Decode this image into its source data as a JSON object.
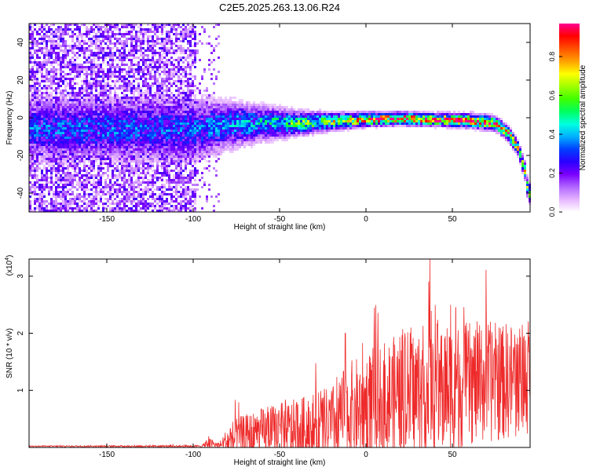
{
  "title": "C2E5.2025.263.13.06.R24",
  "colors": {
    "signal": "#ee2a2a",
    "axis": "#000000"
  },
  "chart_data": [
    {
      "type": "heatmap",
      "title": "C2E5.2025.263.13.06.R24",
      "xlabel": "Height of straight line (km)",
      "ylabel": "Frequency (Hz)",
      "xlim": [
        -195,
        95
      ],
      "ylim": [
        -50,
        50
      ],
      "x_ticks": [
        -150,
        -100,
        -50,
        0,
        50
      ],
      "x_tick_labels": [
        "-150",
        "-100",
        "-50",
        "0",
        "50"
      ],
      "y_ticks": [
        -40,
        -20,
        0,
        20,
        40
      ],
      "y_tick_labels": [
        "-40",
        "-20",
        "0",
        "20",
        "40"
      ],
      "colorbar": {
        "label": "Normalized spectral amplitude",
        "range": [
          0,
          0.97
        ],
        "ticks": [
          0,
          0.2,
          0.4,
          0.6,
          0.8
        ],
        "tick_labels": [
          "0.0",
          "0.2",
          "0.4",
          "0.6",
          "0.8"
        ],
        "colors": [
          "#ffffff",
          "#e6b3ff",
          "#b066ff",
          "#7a00ff",
          "#2a00ff",
          "#0040ff",
          "#00b0ff",
          "#00ffe0",
          "#00ff60",
          "#40ff00",
          "#a0ff00",
          "#ffff00",
          "#ffa000",
          "#ff5000",
          "#ff0000",
          "#ff0090"
        ]
      },
      "noise_region": {
        "x_range": [
          -195,
          -98
        ],
        "y_range": [
          -50,
          50
        ],
        "amplitude": 0.15
      },
      "signal_track": [
        {
          "x": -98,
          "f": -6,
          "spread": 9,
          "amp": 0.3
        },
        {
          "x": -80,
          "f": -4,
          "spread": 7,
          "amp": 0.35
        },
        {
          "x": -60,
          "f": -3,
          "spread": 5,
          "amp": 0.4
        },
        {
          "x": -40,
          "f": -3,
          "spread": 3.5,
          "amp": 0.5
        },
        {
          "x": -20,
          "f": -2,
          "spread": 2.5,
          "amp": 0.6
        },
        {
          "x": 0,
          "f": -1,
          "spread": 2,
          "amp": 0.75
        },
        {
          "x": 20,
          "f": -0.5,
          "spread": 1.8,
          "amp": 0.85
        },
        {
          "x": 40,
          "f": -1,
          "spread": 1.8,
          "amp": 0.85
        },
        {
          "x": 60,
          "f": -1.5,
          "spread": 2,
          "amp": 0.8
        },
        {
          "x": 75,
          "f": -3,
          "spread": 2,
          "amp": 0.8
        },
        {
          "x": 82,
          "f": -8,
          "spread": 2,
          "amp": 0.75
        },
        {
          "x": 88,
          "f": -16,
          "spread": 2,
          "amp": 0.7
        },
        {
          "x": 92,
          "f": -28,
          "spread": 2.5,
          "amp": 0.6
        },
        {
          "x": 94,
          "f": -40,
          "spread": 3,
          "amp": 0.5
        }
      ]
    },
    {
      "type": "line",
      "xlabel": "Height of straight line (km)",
      "ylabel": "SNR (10 * v/v)",
      "y_scale_label": "(x10",
      "y_scale_exp": "4",
      "y_scale_close": ")",
      "xlim": [
        -195,
        95
      ],
      "ylim": [
        0,
        3.3
      ],
      "x_ticks": [
        -150,
        -100,
        -50,
        0,
        50
      ],
      "x_tick_labels": [
        "-150",
        "-100",
        "-50",
        "0",
        "50"
      ],
      "y_ticks": [
        1,
        2,
        3
      ],
      "y_tick_labels": [
        "1",
        "2",
        "3"
      ],
      "envelope": [
        {
          "x": -195,
          "base": 0.02,
          "amp": 0.01
        },
        {
          "x": -95,
          "base": 0.02,
          "amp": 0.02
        },
        {
          "x": -91,
          "base": 0.06,
          "amp": 0.1
        },
        {
          "x": -85,
          "base": 0.03,
          "amp": 0.05
        },
        {
          "x": -78,
          "base": 0.1,
          "amp": 0.35
        },
        {
          "x": -60,
          "base": 0.2,
          "amp": 0.45
        },
        {
          "x": -40,
          "base": 0.25,
          "amp": 0.55
        },
        {
          "x": -20,
          "base": 0.3,
          "amp": 0.7
        },
        {
          "x": -10,
          "base": 0.5,
          "amp": 0.9
        },
        {
          "x": 0,
          "base": 0.6,
          "amp": 1.0
        },
        {
          "x": 20,
          "base": 0.8,
          "amp": 1.1
        },
        {
          "x": 40,
          "base": 0.9,
          "amp": 1.2
        },
        {
          "x": 60,
          "base": 1.0,
          "amp": 1.1
        },
        {
          "x": 95,
          "base": 1.1,
          "amp": 1.0
        }
      ],
      "peaks": [
        {
          "x": 37,
          "y": 3.3
        },
        {
          "x": 36.3,
          "y": 2.9
        },
        {
          "x": 49,
          "y": 2.5
        },
        {
          "x": 52,
          "y": 2.45
        },
        {
          "x": -12,
          "y": 2.0
        },
        {
          "x": 26,
          "y": 2.1
        },
        {
          "x": 65,
          "y": 2.0
        },
        {
          "x": 94,
          "y": 2.2
        },
        {
          "x": -91,
          "y": 0.2
        }
      ]
    }
  ]
}
